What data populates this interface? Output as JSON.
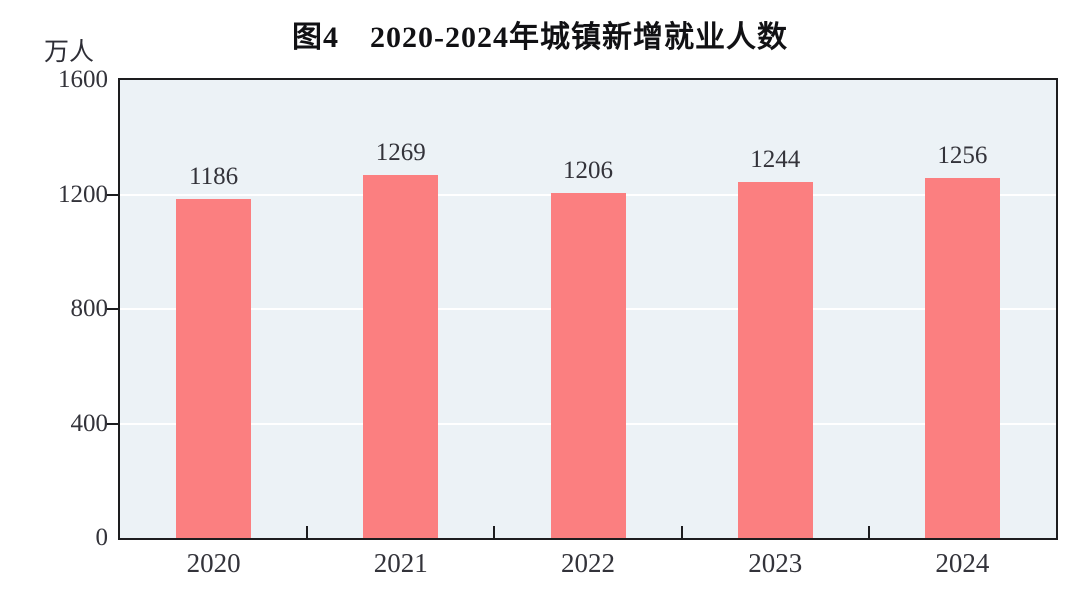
{
  "chart_data": {
    "type": "bar",
    "title": "图4　2020-2024年城镇新增就业人数",
    "ylabel": "万人",
    "categories": [
      "2020",
      "2021",
      "2022",
      "2023",
      "2024"
    ],
    "values": [
      1186,
      1269,
      1206,
      1244,
      1256
    ],
    "ylim": [
      0,
      1600
    ],
    "yticks": [
      0,
      400,
      800,
      1200,
      1600
    ],
    "grid_values": [
      400,
      800,
      1200
    ],
    "grid": "horizontal-white-lines",
    "legend_position": "none",
    "colors": {
      "bar": "#FB7F80",
      "plot_background": "#ECF2F6",
      "axis": "#1D1D1F",
      "gridline": "#FFFFFF",
      "text": "#33333A",
      "title_text": "#111114"
    }
  }
}
